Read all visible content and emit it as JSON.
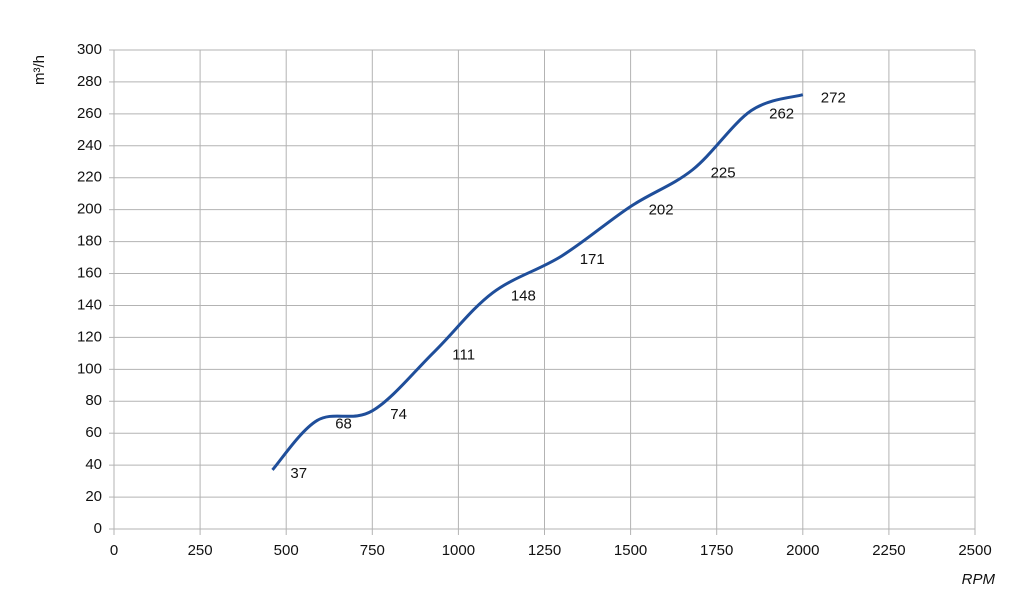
{
  "chart_data": {
    "type": "line",
    "x_label": "RPM",
    "y_label": "m³/h",
    "x": [
      460,
      590,
      750,
      930,
      1100,
      1300,
      1500,
      1680,
      1850,
      2000
    ],
    "values": [
      37,
      68,
      74,
      111,
      148,
      171,
      202,
      225,
      262,
      272
    ],
    "color": "#1f4e9a",
    "xlim": [
      0,
      2500
    ],
    "xticks": [
      0,
      250,
      500,
      750,
      1000,
      1250,
      1500,
      1750,
      2000,
      2250,
      2500
    ],
    "ylim": [
      0,
      300
    ],
    "yticks": [
      0,
      20,
      40,
      60,
      80,
      100,
      120,
      140,
      160,
      180,
      200,
      220,
      240,
      260,
      280,
      300
    ],
    "grid": true,
    "smooth": true
  }
}
